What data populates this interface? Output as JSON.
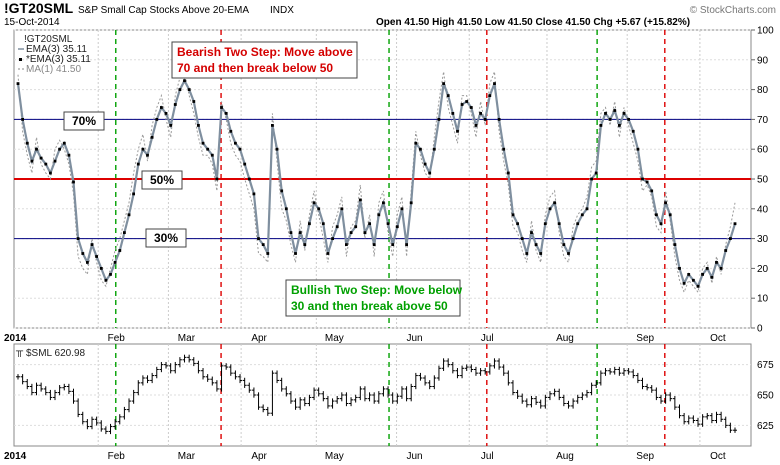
{
  "header": {
    "symbol": "!GT20SML",
    "description": "S&P Small Cap Stocks Above 20-EMA",
    "exchange": "INDX",
    "date": "15-Oct-2014",
    "ohlc": "Open 41.50  High 41.50  Low 41.50  Close 41.50  Chg +5.67 (+15.82%)",
    "watermark": "© StockCharts.com"
  },
  "legend": {
    "name": "!GT20SML",
    "ema_a": "EMA(3) 35.11",
    "ema_b": "*EMA(3) 35.11",
    "ma": "MA(1) 41.50"
  },
  "annotations": {
    "bearish_line1": "Bearish Two Step: Move above",
    "bearish_line2": "70 and then break below 50",
    "bullish_line1": "Bullish Two Step: Move below",
    "bullish_line2": "30 and then break above 50",
    "level_70": "70%",
    "level_50": "50%",
    "level_30": "30%"
  },
  "lower_panel": {
    "label": "$SML 620.98",
    "year": "2014"
  },
  "colors": {
    "red": "#dd0000",
    "green": "#00a000",
    "navy": "#000080",
    "ema": "#7f8f9f"
  },
  "chart_data": [
    {
      "type": "line",
      "title": "!GT20SML S&P Small Cap Stocks Above 20-EMA",
      "ylim": [
        0,
        100
      ],
      "yticks": [
        0,
        10,
        20,
        30,
        40,
        50,
        60,
        70,
        80,
        90,
        100
      ],
      "xlabels": [
        "2014",
        "Feb",
        "Mar",
        "Apr",
        "May",
        "Jun",
        "Jul",
        "Aug",
        "Sep",
        "Oct"
      ],
      "horizontal_lines": [
        {
          "value": 70,
          "color": "navy"
        },
        {
          "value": 50,
          "color": "red"
        },
        {
          "value": 30,
          "color": "navy"
        }
      ],
      "vertical_markers": [
        {
          "date": "2014-02-10",
          "color": "green"
        },
        {
          "date": "2014-03-24",
          "color": "red"
        },
        {
          "date": "2014-05-30",
          "color": "green"
        },
        {
          "date": "2014-07-08",
          "color": "red"
        },
        {
          "date": "2014-08-21",
          "color": "green"
        },
        {
          "date": "2014-09-17",
          "color": "red"
        }
      ],
      "series": [
        {
          "name": "EMA(3)",
          "values": [
            82,
            70,
            62,
            56,
            60,
            57,
            55,
            52,
            56,
            60,
            62,
            58,
            49,
            30,
            25,
            22,
            28,
            24,
            20,
            16,
            18,
            22,
            26,
            32,
            38,
            45,
            55,
            60,
            58,
            64,
            70,
            74,
            72,
            68,
            75,
            80,
            83,
            80,
            76,
            68,
            62,
            60,
            58,
            50,
            74,
            72,
            66,
            62,
            60,
            55,
            50,
            45,
            30,
            28,
            25,
            68,
            60,
            46,
            40,
            32,
            25,
            32,
            28,
            35,
            42,
            40,
            35,
            25,
            30,
            34,
            40,
            28,
            32,
            34,
            43,
            32,
            35,
            28,
            38,
            42,
            35,
            28,
            34,
            40,
            28,
            42,
            62,
            60,
            55,
            52,
            60,
            70,
            82,
            78,
            72,
            66,
            75,
            76,
            74,
            68,
            72,
            70,
            78,
            82,
            70,
            60,
            52,
            38,
            35,
            30,
            25,
            32,
            28,
            25,
            35,
            40,
            42,
            35,
            28,
            25,
            30,
            35,
            38,
            40,
            50,
            52,
            68,
            72,
            70,
            73,
            68,
            72,
            70,
            66,
            60,
            50,
            49,
            46,
            38,
            35,
            42,
            38,
            28,
            20,
            15,
            18,
            16,
            14,
            18,
            20,
            17,
            22,
            20,
            26,
            30,
            35
          ],
          "last": 35.11
        },
        {
          "name": "MA(1)",
          "values": [
            85,
            66,
            58,
            52,
            64,
            55,
            52,
            50,
            60,
            63,
            60,
            55,
            45,
            24,
            20,
            18,
            30,
            22,
            16,
            14,
            20,
            26,
            30,
            36,
            42,
            52,
            60,
            65,
            56,
            68,
            74,
            78,
            70,
            64,
            78,
            84,
            86,
            78,
            72,
            64,
            58,
            58,
            55,
            46,
            76,
            70,
            62,
            58,
            56,
            50,
            45,
            40,
            25,
            24,
            22,
            72,
            56,
            40,
            36,
            28,
            22,
            36,
            26,
            38,
            46,
            38,
            30,
            22,
            34,
            38,
            44,
            24,
            34,
            36,
            48,
            30,
            38,
            24,
            42,
            46,
            32,
            24,
            38,
            44,
            24,
            46,
            66,
            58,
            52,
            50,
            64,
            76,
            86,
            74,
            68,
            62,
            78,
            78,
            72,
            64,
            76,
            68,
            82,
            86,
            66,
            56,
            48,
            34,
            32,
            26,
            22,
            36,
            26,
            22,
            38,
            44,
            46,
            32,
            24,
            22,
            34,
            38,
            40,
            44,
            54,
            56,
            72,
            74,
            68,
            76,
            64,
            74,
            68,
            62,
            56,
            46,
            48,
            44,
            34,
            32,
            46,
            36,
            24,
            16,
            12,
            16,
            14,
            12,
            20,
            22,
            15,
            24,
            18,
            28,
            34,
            42
          ],
          "last": 41.5
        }
      ]
    },
    {
      "type": "ohlc",
      "title": "$SML 620.98",
      "ylim": [
        608,
        692
      ],
      "yticks": [
        625,
        650,
        675
      ],
      "xlabels": [
        "2014",
        "Feb",
        "Mar",
        "Apr",
        "May",
        "Jun",
        "Jul",
        "Aug",
        "Sep",
        "Oct"
      ],
      "series": [
        {
          "name": "$SML",
          "close": [
            665,
            661,
            657,
            652,
            658,
            655,
            652,
            648,
            652,
            656,
            657,
            653,
            645,
            634,
            628,
            624,
            630,
            627,
            622,
            620,
            624,
            628,
            632,
            638,
            645,
            652,
            660,
            664,
            662,
            666,
            671,
            675,
            674,
            670,
            675,
            679,
            681,
            679,
            676,
            670,
            665,
            663,
            660,
            655,
            674,
            673,
            668,
            665,
            662,
            658,
            654,
            650,
            640,
            638,
            635,
            668,
            662,
            655,
            651,
            645,
            640,
            646,
            643,
            648,
            654,
            651,
            647,
            641,
            645,
            647,
            650,
            643,
            646,
            648,
            655,
            647,
            650,
            645,
            651,
            655,
            650,
            645,
            649,
            655,
            647,
            657,
            666,
            664,
            660,
            657,
            664,
            672,
            678,
            675,
            670,
            666,
            672,
            673,
            671,
            668,
            670,
            669,
            674,
            678,
            673,
            668,
            660,
            652,
            649,
            645,
            642,
            647,
            644,
            641,
            648,
            651,
            653,
            648,
            643,
            641,
            645,
            648,
            650,
            652,
            658,
            660,
            668,
            670,
            669,
            671,
            668,
            670,
            669,
            666,
            662,
            657,
            656,
            654,
            648,
            645,
            650,
            647,
            640,
            633,
            628,
            631,
            629,
            626,
            632,
            633,
            629,
            634,
            630,
            625,
            621,
            621
          ]
        }
      ]
    }
  ]
}
